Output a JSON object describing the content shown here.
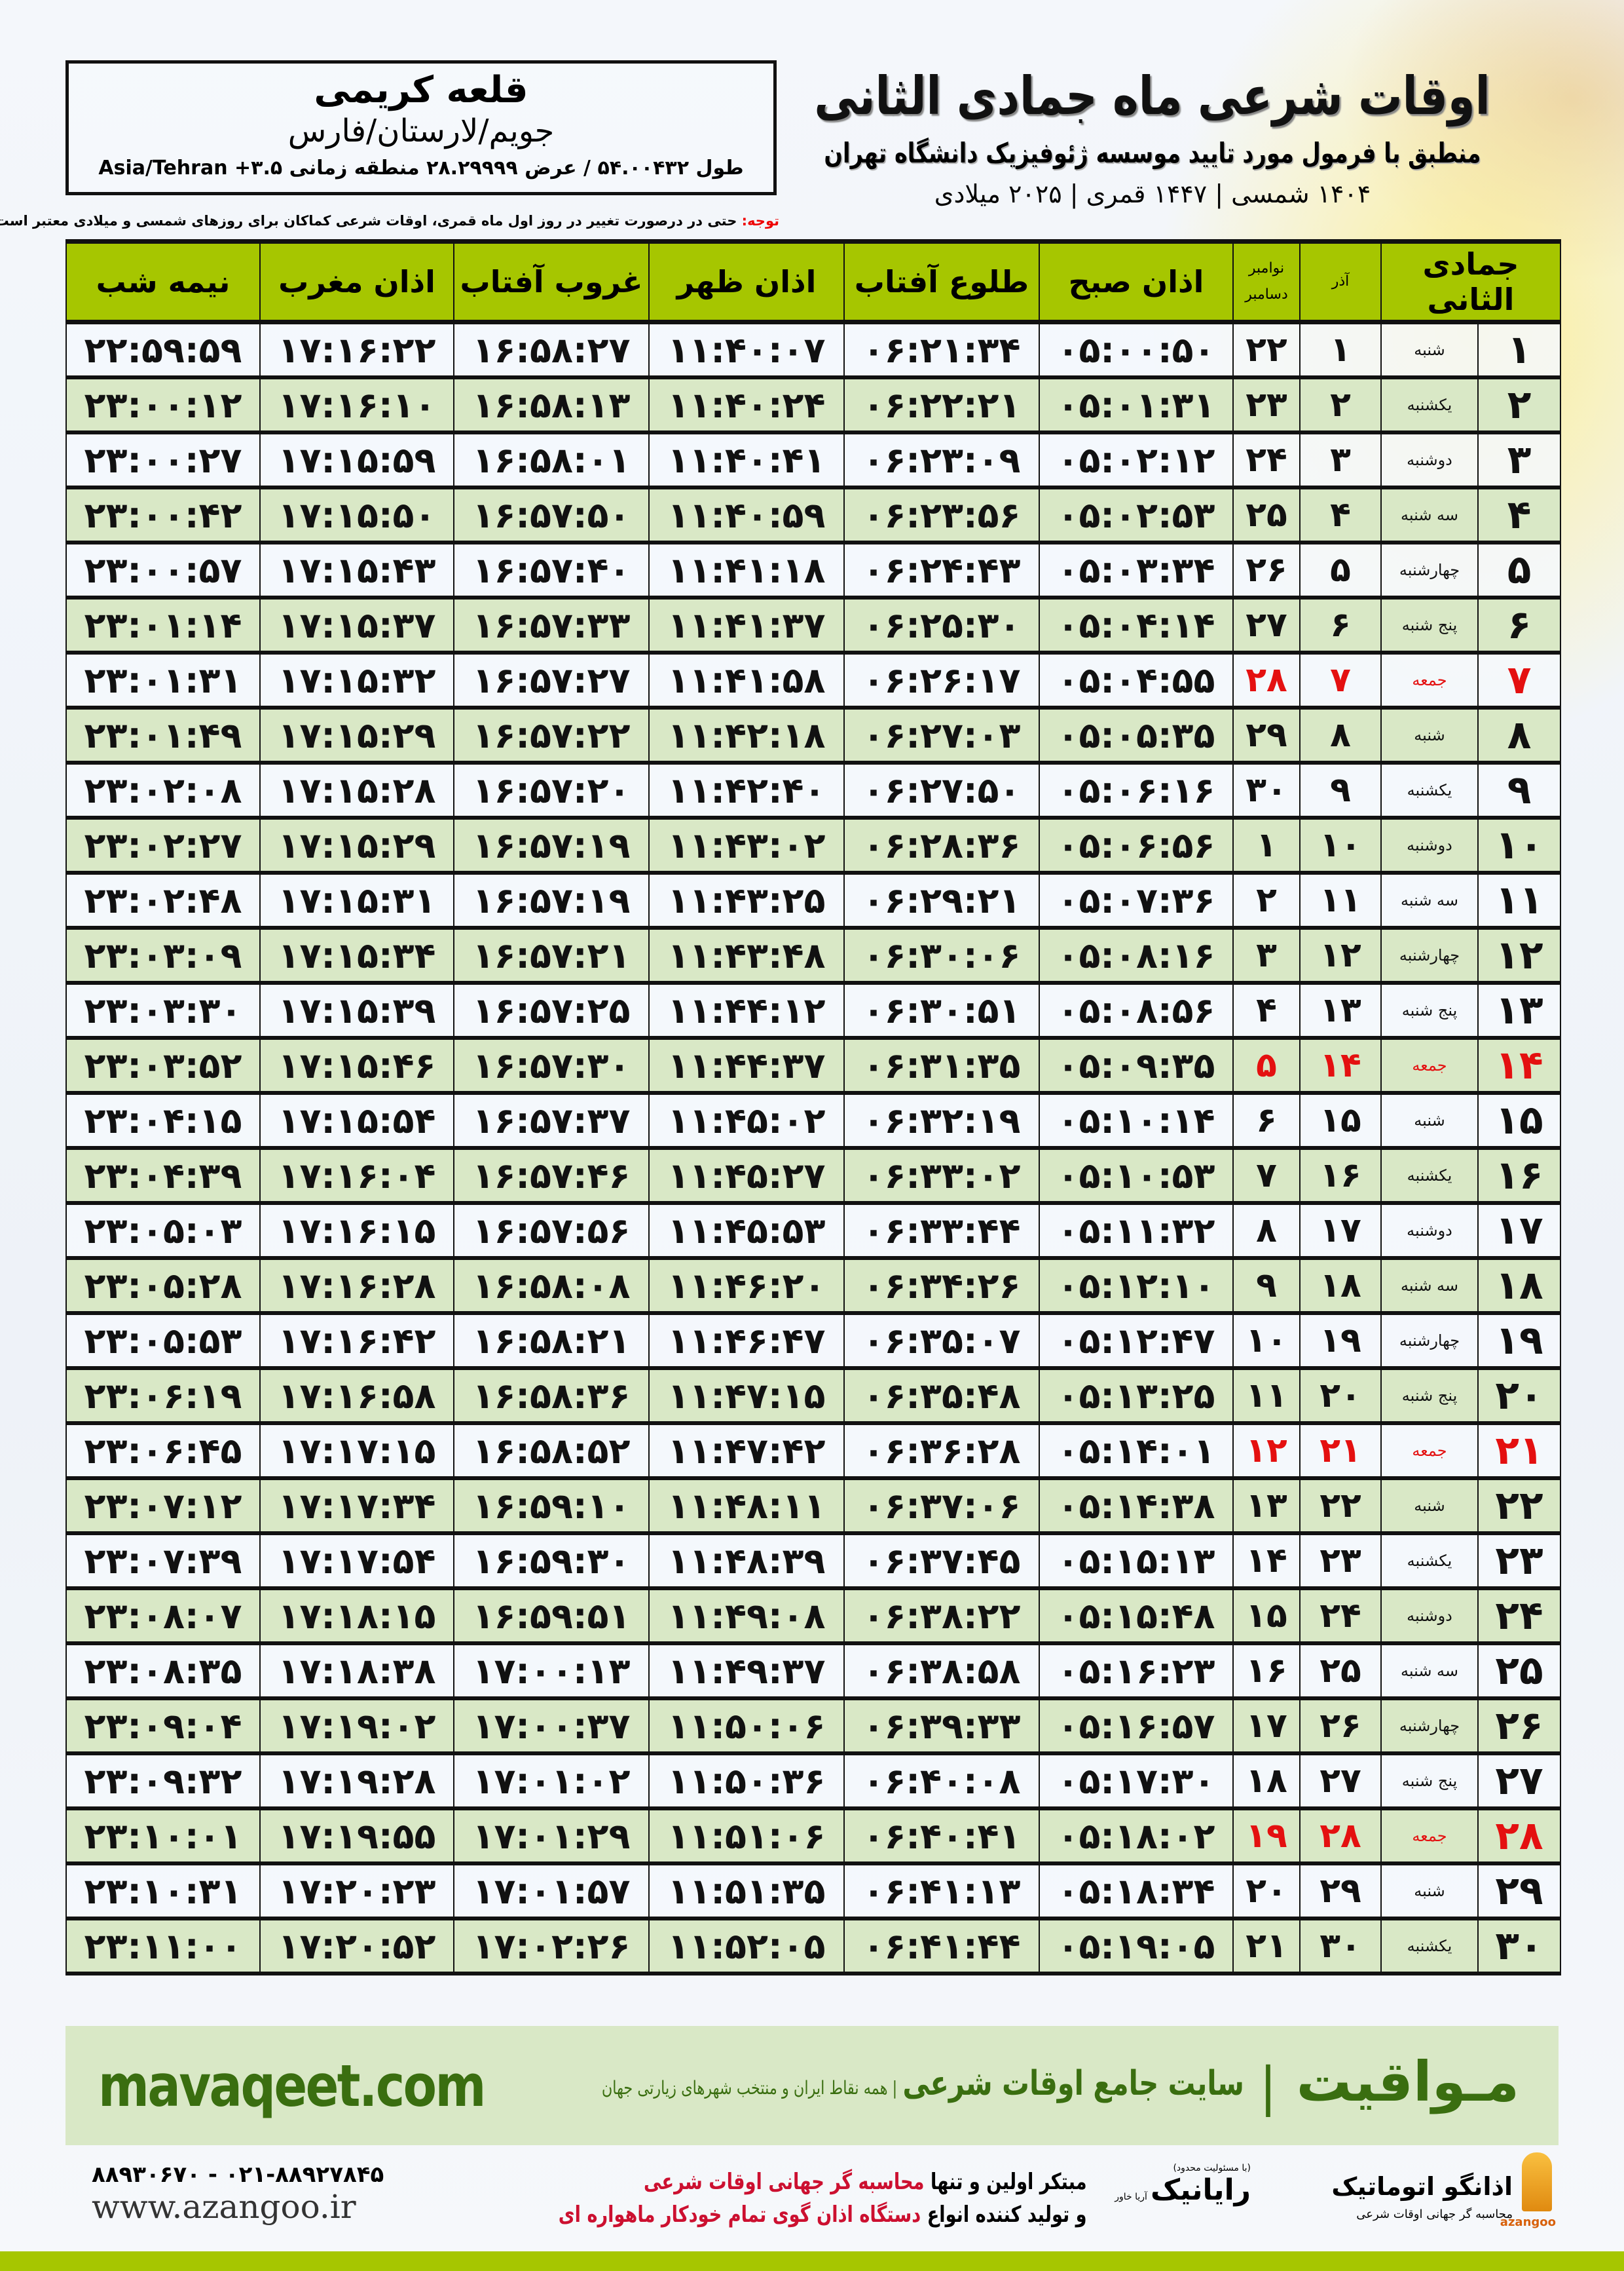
{
  "location": {
    "name": "قلعه کریمی",
    "region": "جویم/لارستان/فارس",
    "coords": "طول ۵۴.۰۰۴۳۲ / عرض ۲۸.۲۹۹۹۹ منطقه زمانی ۳.۵+ Asia/Tehran"
  },
  "header": {
    "title": "اوقات شرعی ماه جمادی الثانی",
    "subtitle": "منطبق با فرمول مورد تایید موسسه ژئوفیزیک دانشگاه تهران",
    "years": "۱۴۰۴ شمسی | ۱۴۴۷ قمری | ۲۰۲۵ میلادی"
  },
  "note": {
    "label": "توجه:",
    "text": " حتی در درصورت تغییر در روز اول ماه قمری، اوقات شرعی کماکان برای روزهای شمسی و میلادی معتبر است."
  },
  "table": {
    "columns": {
      "hijri": "جمادی الثانی",
      "azar": "آذر",
      "greg_top": "نوامبر",
      "greg_bottom": "دسامبر",
      "sobh": "اذان صبح",
      "tulu": "طلوع آفتاب",
      "zuhr": "اذان ظهر",
      "ghurub": "غروب آفتاب",
      "maghrib": "اذان مغرب",
      "nime": "نیمه شب"
    },
    "holiday_color": "#e41010",
    "header_color": "#a6c600",
    "alt_row_color": "#d9e8c6",
    "rows": [
      {
        "h": "۱",
        "wd": "شنبه",
        "az": "۱",
        "gr": "۲۲",
        "sobh": "۰۵:۰۰:۵۰",
        "tulu": "۰۶:۲۱:۳۴",
        "zuhr": "۱۱:۴۰:۰۷",
        "ghurub": "۱۶:۵۸:۲۷",
        "maghrib": "۱۷:۱۶:۲۲",
        "nime": "۲۲:۵۹:۵۹",
        "holiday": false
      },
      {
        "h": "۲",
        "wd": "یکشنبه",
        "az": "۲",
        "gr": "۲۳",
        "sobh": "۰۵:۰۱:۳۱",
        "tulu": "۰۶:۲۲:۲۱",
        "zuhr": "۱۱:۴۰:۲۴",
        "ghurub": "۱۶:۵۸:۱۳",
        "maghrib": "۱۷:۱۶:۱۰",
        "nime": "۲۳:۰۰:۱۲",
        "holiday": false
      },
      {
        "h": "۳",
        "wd": "دوشنبه",
        "az": "۳",
        "gr": "۲۴",
        "sobh": "۰۵:۰۲:۱۲",
        "tulu": "۰۶:۲۳:۰۹",
        "zuhr": "۱۱:۴۰:۴۱",
        "ghurub": "۱۶:۵۸:۰۱",
        "maghrib": "۱۷:۱۵:۵۹",
        "nime": "۲۳:۰۰:۲۷",
        "holiday": false
      },
      {
        "h": "۴",
        "wd": "سه شنبه",
        "az": "۴",
        "gr": "۲۵",
        "sobh": "۰۵:۰۲:۵۳",
        "tulu": "۰۶:۲۳:۵۶",
        "zuhr": "۱۱:۴۰:۵۹",
        "ghurub": "۱۶:۵۷:۵۰",
        "maghrib": "۱۷:۱۵:۵۰",
        "nime": "۲۳:۰۰:۴۲",
        "holiday": false
      },
      {
        "h": "۵",
        "wd": "چهارشنبه",
        "az": "۵",
        "gr": "۲۶",
        "sobh": "۰۵:۰۳:۳۴",
        "tulu": "۰۶:۲۴:۴۳",
        "zuhr": "۱۱:۴۱:۱۸",
        "ghurub": "۱۶:۵۷:۴۰",
        "maghrib": "۱۷:۱۵:۴۳",
        "nime": "۲۳:۰۰:۵۷",
        "holiday": false
      },
      {
        "h": "۶",
        "wd": "پنج شنبه",
        "az": "۶",
        "gr": "۲۷",
        "sobh": "۰۵:۰۴:۱۴",
        "tulu": "۰۶:۲۵:۳۰",
        "zuhr": "۱۱:۴۱:۳۷",
        "ghurub": "۱۶:۵۷:۳۳",
        "maghrib": "۱۷:۱۵:۳۷",
        "nime": "۲۳:۰۱:۱۴",
        "holiday": false
      },
      {
        "h": "۷",
        "wd": "جمعه",
        "az": "۷",
        "gr": "۲۸",
        "sobh": "۰۵:۰۴:۵۵",
        "tulu": "۰۶:۲۶:۱۷",
        "zuhr": "۱۱:۴۱:۵۸",
        "ghurub": "۱۶:۵۷:۲۷",
        "maghrib": "۱۷:۱۵:۳۲",
        "nime": "۲۳:۰۱:۳۱",
        "holiday": true
      },
      {
        "h": "۸",
        "wd": "شنبه",
        "az": "۸",
        "gr": "۲۹",
        "sobh": "۰۵:۰۵:۳۵",
        "tulu": "۰۶:۲۷:۰۳",
        "zuhr": "۱۱:۴۲:۱۸",
        "ghurub": "۱۶:۵۷:۲۲",
        "maghrib": "۱۷:۱۵:۲۹",
        "nime": "۲۳:۰۱:۴۹",
        "holiday": false
      },
      {
        "h": "۹",
        "wd": "یکشنبه",
        "az": "۹",
        "gr": "۳۰",
        "sobh": "۰۵:۰۶:۱۶",
        "tulu": "۰۶:۲۷:۵۰",
        "zuhr": "۱۱:۴۲:۴۰",
        "ghurub": "۱۶:۵۷:۲۰",
        "maghrib": "۱۷:۱۵:۲۸",
        "nime": "۲۳:۰۲:۰۸",
        "holiday": false
      },
      {
        "h": "۱۰",
        "wd": "دوشنبه",
        "az": "۱۰",
        "gr": "۱",
        "sobh": "۰۵:۰۶:۵۶",
        "tulu": "۰۶:۲۸:۳۶",
        "zuhr": "۱۱:۴۳:۰۲",
        "ghurub": "۱۶:۵۷:۱۹",
        "maghrib": "۱۷:۱۵:۲۹",
        "nime": "۲۳:۰۲:۲۷",
        "holiday": false
      },
      {
        "h": "۱۱",
        "wd": "سه شنبه",
        "az": "۱۱",
        "gr": "۲",
        "sobh": "۰۵:۰۷:۳۶",
        "tulu": "۰۶:۲۹:۲۱",
        "zuhr": "۱۱:۴۳:۲۵",
        "ghurub": "۱۶:۵۷:۱۹",
        "maghrib": "۱۷:۱۵:۳۱",
        "nime": "۲۳:۰۲:۴۸",
        "holiday": false
      },
      {
        "h": "۱۲",
        "wd": "چهارشنبه",
        "az": "۱۲",
        "gr": "۳",
        "sobh": "۰۵:۰۸:۱۶",
        "tulu": "۰۶:۳۰:۰۶",
        "zuhr": "۱۱:۴۳:۴۸",
        "ghurub": "۱۶:۵۷:۲۱",
        "maghrib": "۱۷:۱۵:۳۴",
        "nime": "۲۳:۰۳:۰۹",
        "holiday": false
      },
      {
        "h": "۱۳",
        "wd": "پنج شنبه",
        "az": "۱۳",
        "gr": "۴",
        "sobh": "۰۵:۰۸:۵۶",
        "tulu": "۰۶:۳۰:۵۱",
        "zuhr": "۱۱:۴۴:۱۲",
        "ghurub": "۱۶:۵۷:۲۵",
        "maghrib": "۱۷:۱۵:۳۹",
        "nime": "۲۳:۰۳:۳۰",
        "holiday": false
      },
      {
        "h": "۱۴",
        "wd": "جمعه",
        "az": "۱۴",
        "gr": "۵",
        "sobh": "۰۵:۰۹:۳۵",
        "tulu": "۰۶:۳۱:۳۵",
        "zuhr": "۱۱:۴۴:۳۷",
        "ghurub": "۱۶:۵۷:۳۰",
        "maghrib": "۱۷:۱۵:۴۶",
        "nime": "۲۳:۰۳:۵۲",
        "holiday": true
      },
      {
        "h": "۱۵",
        "wd": "شنبه",
        "az": "۱۵",
        "gr": "۶",
        "sobh": "۰۵:۱۰:۱۴",
        "tulu": "۰۶:۳۲:۱۹",
        "zuhr": "۱۱:۴۵:۰۲",
        "ghurub": "۱۶:۵۷:۳۷",
        "maghrib": "۱۷:۱۵:۵۴",
        "nime": "۲۳:۰۴:۱۵",
        "holiday": false
      },
      {
        "h": "۱۶",
        "wd": "یکشنبه",
        "az": "۱۶",
        "gr": "۷",
        "sobh": "۰۵:۱۰:۵۳",
        "tulu": "۰۶:۳۳:۰۲",
        "zuhr": "۱۱:۴۵:۲۷",
        "ghurub": "۱۶:۵۷:۴۶",
        "maghrib": "۱۷:۱۶:۰۴",
        "nime": "۲۳:۰۴:۳۹",
        "holiday": false
      },
      {
        "h": "۱۷",
        "wd": "دوشنبه",
        "az": "۱۷",
        "gr": "۸",
        "sobh": "۰۵:۱۱:۳۲",
        "tulu": "۰۶:۳۳:۴۴",
        "zuhr": "۱۱:۴۵:۵۳",
        "ghurub": "۱۶:۵۷:۵۶",
        "maghrib": "۱۷:۱۶:۱۵",
        "nime": "۲۳:۰۵:۰۳",
        "holiday": false
      },
      {
        "h": "۱۸",
        "wd": "سه شنبه",
        "az": "۱۸",
        "gr": "۹",
        "sobh": "۰۵:۱۲:۱۰",
        "tulu": "۰۶:۳۴:۲۶",
        "zuhr": "۱۱:۴۶:۲۰",
        "ghurub": "۱۶:۵۸:۰۸",
        "maghrib": "۱۷:۱۶:۲۸",
        "nime": "۲۳:۰۵:۲۸",
        "holiday": false
      },
      {
        "h": "۱۹",
        "wd": "چهارشنبه",
        "az": "۱۹",
        "gr": "۱۰",
        "sobh": "۰۵:۱۲:۴۷",
        "tulu": "۰۶:۳۵:۰۷",
        "zuhr": "۱۱:۴۶:۴۷",
        "ghurub": "۱۶:۵۸:۲۱",
        "maghrib": "۱۷:۱۶:۴۲",
        "nime": "۲۳:۰۵:۵۳",
        "holiday": false
      },
      {
        "h": "۲۰",
        "wd": "پنج شنبه",
        "az": "۲۰",
        "gr": "۱۱",
        "sobh": "۰۵:۱۳:۲۵",
        "tulu": "۰۶:۳۵:۴۸",
        "zuhr": "۱۱:۴۷:۱۵",
        "ghurub": "۱۶:۵۸:۳۶",
        "maghrib": "۱۷:۱۶:۵۸",
        "nime": "۲۳:۰۶:۱۹",
        "holiday": false
      },
      {
        "h": "۲۱",
        "wd": "جمعه",
        "az": "۲۱",
        "gr": "۱۲",
        "sobh": "۰۵:۱۴:۰۱",
        "tulu": "۰۶:۳۶:۲۸",
        "zuhr": "۱۱:۴۷:۴۲",
        "ghurub": "۱۶:۵۸:۵۲",
        "maghrib": "۱۷:۱۷:۱۵",
        "nime": "۲۳:۰۶:۴۵",
        "holiday": true
      },
      {
        "h": "۲۲",
        "wd": "شنبه",
        "az": "۲۲",
        "gr": "۱۳",
        "sobh": "۰۵:۱۴:۳۸",
        "tulu": "۰۶:۳۷:۰۶",
        "zuhr": "۱۱:۴۸:۱۱",
        "ghurub": "۱۶:۵۹:۱۰",
        "maghrib": "۱۷:۱۷:۳۴",
        "nime": "۲۳:۰۷:۱۲",
        "holiday": false
      },
      {
        "h": "۲۳",
        "wd": "یکشنبه",
        "az": "۲۳",
        "gr": "۱۴",
        "sobh": "۰۵:۱۵:۱۳",
        "tulu": "۰۶:۳۷:۴۵",
        "zuhr": "۱۱:۴۸:۳۹",
        "ghurub": "۱۶:۵۹:۳۰",
        "maghrib": "۱۷:۱۷:۵۴",
        "nime": "۲۳:۰۷:۳۹",
        "holiday": false
      },
      {
        "h": "۲۴",
        "wd": "دوشنبه",
        "az": "۲۴",
        "gr": "۱۵",
        "sobh": "۰۵:۱۵:۴۸",
        "tulu": "۰۶:۳۸:۲۲",
        "zuhr": "۱۱:۴۹:۰۸",
        "ghurub": "۱۶:۵۹:۵۱",
        "maghrib": "۱۷:۱۸:۱۵",
        "nime": "۲۳:۰۸:۰۷",
        "holiday": false
      },
      {
        "h": "۲۵",
        "wd": "سه شنبه",
        "az": "۲۵",
        "gr": "۱۶",
        "sobh": "۰۵:۱۶:۲۳",
        "tulu": "۰۶:۳۸:۵۸",
        "zuhr": "۱۱:۴۹:۳۷",
        "ghurub": "۱۷:۰۰:۱۳",
        "maghrib": "۱۷:۱۸:۳۸",
        "nime": "۲۳:۰۸:۳۵",
        "holiday": false
      },
      {
        "h": "۲۶",
        "wd": "چهارشنبه",
        "az": "۲۶",
        "gr": "۱۷",
        "sobh": "۰۵:۱۶:۵۷",
        "tulu": "۰۶:۳۹:۳۳",
        "zuhr": "۱۱:۵۰:۰۶",
        "ghurub": "۱۷:۰۰:۳۷",
        "maghrib": "۱۷:۱۹:۰۲",
        "nime": "۲۳:۰۹:۰۴",
        "holiday": false
      },
      {
        "h": "۲۷",
        "wd": "پنج شنبه",
        "az": "۲۷",
        "gr": "۱۸",
        "sobh": "۰۵:۱۷:۳۰",
        "tulu": "۰۶:۴۰:۰۸",
        "zuhr": "۱۱:۵۰:۳۶",
        "ghurub": "۱۷:۰۱:۰۲",
        "maghrib": "۱۷:۱۹:۲۸",
        "nime": "۲۳:۰۹:۳۲",
        "holiday": false
      },
      {
        "h": "۲۸",
        "wd": "جمعه",
        "az": "۲۸",
        "gr": "۱۹",
        "sobh": "۰۵:۱۸:۰۲",
        "tulu": "۰۶:۴۰:۴۱",
        "zuhr": "۱۱:۵۱:۰۶",
        "ghurub": "۱۷:۰۱:۲۹",
        "maghrib": "۱۷:۱۹:۵۵",
        "nime": "۲۳:۱۰:۰۱",
        "holiday": true
      },
      {
        "h": "۲۹",
        "wd": "شنبه",
        "az": "۲۹",
        "gr": "۲۰",
        "sobh": "۰۵:۱۸:۳۴",
        "tulu": "۰۶:۴۱:۱۳",
        "zuhr": "۱۱:۵۱:۳۵",
        "ghurub": "۱۷:۰۱:۵۷",
        "maghrib": "۱۷:۲۰:۲۳",
        "nime": "۲۳:۱۰:۳۱",
        "holiday": false
      },
      {
        "h": "۳۰",
        "wd": "یکشنبه",
        "az": "۳۰",
        "gr": "۲۱",
        "sobh": "۰۵:۱۹:۰۵",
        "tulu": "۰۶:۴۱:۴۴",
        "zuhr": "۱۱:۵۲:۰۵",
        "ghurub": "۱۷:۰۲:۲۶",
        "maghrib": "۱۷:۲۰:۵۲",
        "nime": "۲۳:۱۱:۰۰",
        "holiday": false
      }
    ]
  },
  "promo": {
    "brand": "مـواقیت",
    "separator": "|",
    "tagline": "سایت جامع اوقات شرعی",
    "sub": "| همه نقاط ایران و منتخب شهرهای زیارتی جهان",
    "url": "mavaqeet.com",
    "color": "#3a6e10"
  },
  "contact": {
    "logo_azangoo": "اذانگو اتوماتیک",
    "logo_azangoo_sub": "محاسبه گر جهانی اوقات شرعی",
    "logo_azangoo_en": "azangoo",
    "logo_rayanik": "رایانیک",
    "logo_rayanik_sub": "آریا خاور",
    "logo_rayanik_note": "(با مسئولیت محدود)",
    "line1_a": "مبتکر اولین و تنها ",
    "line1_b": "محاسبه گر جهانی اوقات شرعی",
    "line2_a": "و تولید کننده انواع ",
    "line2_b": "دستگاه اذان گوی تمام خودکار ماهواره ای",
    "phone": "۰۲۱-۸۸۹۲۷۸۴۵ - ۸۸۹۳۰۶۷۰",
    "website": "www.azangoo.ir"
  }
}
